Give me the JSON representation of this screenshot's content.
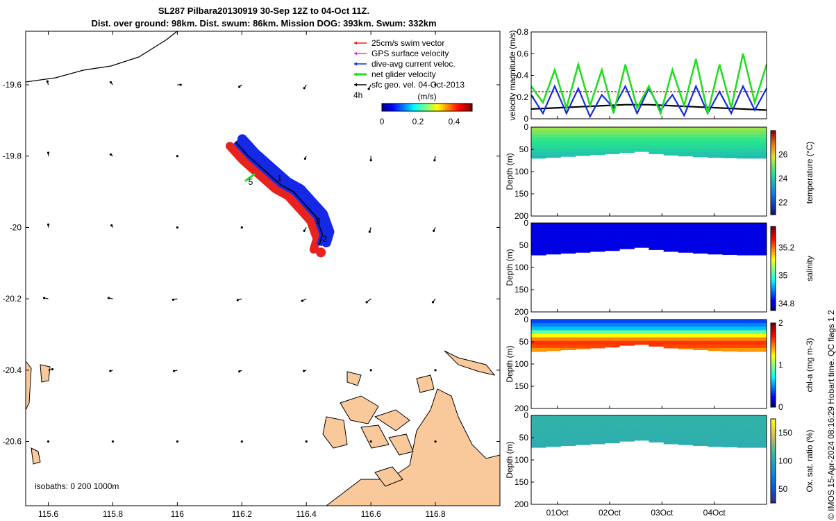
{
  "title_line1": "SL287 Pilbara20130919 30-Sep 12Z to 04-Oct 11Z.",
  "title_line2": "Dist. over ground: 98km. Dist. swum: 86km. Mission DOG: 393km. Swum: 332km",
  "credit": "© IMOS 15-Apr-2024 08:16:29 Hobart time. QC flags 1  2",
  "colors": {
    "land": "#f9c99b",
    "swim": "#e8231f",
    "gps": "#e030e0",
    "dive": "#1428e6",
    "net": "#22dd22",
    "sfc": "#000000"
  },
  "chart_data": [
    {
      "type": "scatter",
      "name": "map",
      "xlim": [
        115.53,
        117.0
      ],
      "ylim": [
        -20.78,
        -19.45
      ],
      "xticks": [
        115.6,
        115.8,
        116,
        116.2,
        116.4,
        116.6,
        116.8
      ],
      "xtick_labels": [
        "115.6",
        "115.8",
        "116",
        "116.2",
        "116.4",
        "116.6",
        "116.8"
      ],
      "yticks": [
        -19.6,
        -19.8,
        -20,
        -20.2,
        -20.4,
        -20.6
      ],
      "ytick_labels": [
        "-19.6",
        "-19.8",
        "-20",
        "-20.2",
        "-20.4",
        "-20.6"
      ],
      "legend": [
        {
          "label": "25cm/s swim vector",
          "color": "#e8231f"
        },
        {
          "label": "GPS surface velocity",
          "color": "#e030e0"
        },
        {
          "label": "dive-avg current veloc.",
          "color": "#1428e6"
        },
        {
          "label": "net glider velocity",
          "color": "#22dd22"
        },
        {
          "label": "sfc geo. vel. 04-Oct-2013",
          "color": "#000000"
        }
      ],
      "legend_placement": "top-right",
      "scale_label": "4h",
      "colorbar": {
        "label": "(m/s)",
        "range": [
          0,
          0.5
        ],
        "ticks": [
          0,
          0.2,
          0.4
        ],
        "tick_labels": [
          "0",
          "0.2",
          "0.4"
        ]
      },
      "isobaths_label": "isobaths: 0   200  1000m",
      "track_labels": [
        {
          "text": "1",
          "lon": 116.31,
          "lat": -19.87
        },
        {
          "text": "2",
          "lon": 116.45,
          "lat": -20.04
        },
        {
          "text": "3",
          "lon": 116.43,
          "lat": -19.99
        },
        {
          "text": "5",
          "lon": 116.22,
          "lat": -19.88
        }
      ],
      "track": [
        [
          116.18,
          -19.76
        ],
        [
          116.22,
          -19.8
        ],
        [
          116.27,
          -19.84
        ],
        [
          116.32,
          -19.88
        ],
        [
          116.36,
          -19.9
        ],
        [
          116.4,
          -19.94
        ],
        [
          116.43,
          -19.97
        ],
        [
          116.45,
          -20.02
        ],
        [
          116.44,
          -20.05
        ]
      ],
      "geo_vectors": {
        "lons": [
          115.6,
          115.8,
          116.0,
          116.2,
          116.4,
          116.6,
          116.8
        ],
        "lats": [
          -19.6,
          -19.8,
          -20.0,
          -20.2,
          -20.4,
          -20.6
        ],
        "u": [
          [
            -0.02,
            -0.05,
            0.08,
            -0.06,
            -0.05,
            -0.05,
            0
          ],
          [
            0,
            -0.05,
            0,
            0,
            -0.03,
            0,
            -0.02
          ],
          [
            0,
            -0.03,
            0,
            0,
            -0.05,
            -0.03,
            -0.04
          ],
          [
            -0.1,
            -0.1,
            -0.1,
            -0.1,
            -0.1,
            -0.1,
            -0.06
          ],
          [
            0.1,
            -0.06,
            -0.08,
            -0.06,
            -0.06,
            0,
            0
          ],
          [
            0,
            0,
            0,
            0,
            0,
            0,
            0
          ]
        ],
        "v": [
          [
            0.08,
            0.06,
            0,
            -0.05,
            -0.08,
            -0.1,
            0
          ],
          [
            0.08,
            0.04,
            0,
            0,
            -0.06,
            -0.1,
            -0.1
          ],
          [
            0.07,
            0.05,
            0,
            0,
            -0.08,
            -0.1,
            -0.08
          ],
          [
            0.02,
            0.02,
            -0.02,
            -0.03,
            -0.05,
            -0.08,
            -0.08
          ],
          [
            0.02,
            -0.02,
            -0.02,
            -0.03,
            -0.02,
            0,
            0
          ],
          [
            0,
            0,
            0,
            0,
            0,
            0,
            0
          ]
        ]
      }
    },
    {
      "type": "line",
      "name": "velocity",
      "ylabel": "velocity magnitude (m/s)",
      "ylim": [
        0,
        0.8
      ],
      "yticks": [
        0,
        0.2,
        0.4,
        0.6,
        0.8
      ],
      "ytick_labels": [
        "0",
        "0.2",
        "0.4",
        "0.6",
        "0.8"
      ],
      "xlim": [
        0.5,
        5.0
      ],
      "series": [
        {
          "color": "#e8231f",
          "values": [
            0.25,
            0.25,
            0.25,
            0.25,
            0.25,
            0.25,
            0.25,
            0.25,
            0.25,
            0.25,
            0.25
          ]
        },
        {
          "color": "#000000",
          "values": [
            0.09,
            0.1,
            0.11,
            0.12,
            0.13,
            0.13,
            0.12,
            0.11,
            0.1,
            0.09,
            0.08
          ]
        },
        {
          "color": "#1428e6",
          "values": [
            0.22,
            0.05,
            0.3,
            0.05,
            0.28,
            0.02,
            0.22,
            0.1,
            0.3,
            0.05,
            0.28,
            0.08,
            0.22,
            0.03,
            0.3,
            0.05,
            0.25,
            0.05,
            0.3,
            0.08,
            0.28
          ]
        },
        {
          "color": "#22dd22",
          "values": [
            0.3,
            0.15,
            0.45,
            0.1,
            0.5,
            0.12,
            0.45,
            0.05,
            0.5,
            0.1,
            0.3,
            0.05,
            0.45,
            0.12,
            0.55,
            0.05,
            0.5,
            0.1,
            0.6,
            0.15,
            0.5
          ]
        }
      ]
    },
    {
      "type": "heatmap",
      "name": "temperature",
      "ylabel": "Depth (m)",
      "cbar_label": "temperature (°C)",
      "ylim": [
        0,
        200
      ],
      "yticks": [
        0,
        50,
        100,
        150,
        200
      ],
      "ytick_labels": [
        "0",
        "50",
        "100",
        "150",
        "200"
      ],
      "cbar_range": [
        21,
        28
      ],
      "cbar_ticks": [
        22,
        24,
        26
      ],
      "cbar_tick_labels": [
        "22",
        "24",
        "26"
      ],
      "bottom_depth": [
        70,
        68,
        66,
        64,
        62,
        60,
        57,
        55,
        60,
        63,
        65,
        67,
        68,
        69,
        70,
        70
      ],
      "profile": [
        {
          "depth": 0,
          "value": 25.5
        },
        {
          "depth": 30,
          "value": 24.5
        },
        {
          "depth": 60,
          "value": 24.0
        },
        {
          "depth": 80,
          "value": 23.5
        }
      ]
    },
    {
      "type": "heatmap",
      "name": "salinity",
      "ylabel": "Depth (m)",
      "cbar_label": "salinity",
      "ylim": [
        0,
        200
      ],
      "yticks": [
        0,
        50,
        100,
        150,
        200
      ],
      "ytick_labels": [
        "0",
        "50",
        "100",
        "150",
        "200"
      ],
      "cbar_range": [
        34.75,
        35.35
      ],
      "cbar_ticks": [
        34.8,
        35,
        35.2
      ],
      "cbar_tick_labels": [
        "34.8",
        "35",
        "35.2"
      ],
      "bottom_depth": [
        72,
        70,
        68,
        66,
        64,
        62,
        58,
        55,
        60,
        64,
        66,
        68,
        70,
        71,
        72,
        72
      ],
      "profile": [
        {
          "depth": 0,
          "value": 34.8
        },
        {
          "depth": 80,
          "value": 34.8
        }
      ]
    },
    {
      "type": "heatmap",
      "name": "chl",
      "ylabel": "Depth (m)",
      "cbar_label": "chl-a (mg m-3)",
      "ylim": [
        0,
        200
      ],
      "yticks": [
        0,
        50,
        100,
        150,
        200
      ],
      "ytick_labels": [
        "0",
        "50",
        "100",
        "150",
        "200"
      ],
      "cbar_range": [
        0,
        2
      ],
      "cbar_ticks": [
        0,
        1,
        2
      ],
      "cbar_tick_labels": [
        "0",
        "1",
        "2"
      ],
      "bottom_depth": [
        72,
        70,
        68,
        66,
        64,
        62,
        58,
        56,
        60,
        64,
        66,
        68,
        70,
        71,
        72,
        72
      ],
      "profile": [
        {
          "depth": 0,
          "value": 0.3
        },
        {
          "depth": 20,
          "value": 0.6
        },
        {
          "depth": 40,
          "value": 1.4
        },
        {
          "depth": 55,
          "value": 1.7
        },
        {
          "depth": 75,
          "value": 1.3
        }
      ]
    },
    {
      "type": "heatmap",
      "name": "oxygen",
      "ylabel": "Depth (m)",
      "cbar_label": "Ox. sat. ratio (%)",
      "ylim": [
        0,
        200
      ],
      "yticks": [
        0,
        50,
        100,
        150,
        200
      ],
      "ytick_labels": [
        "0",
        "50",
        "100",
        "150",
        "200"
      ],
      "cbar_range": [
        25,
        175
      ],
      "cbar_ticks": [
        50,
        100,
        150
      ],
      "cbar_tick_labels": [
        "50",
        "100",
        "150"
      ],
      "bottom_depth": [
        72,
        70,
        68,
        66,
        64,
        62,
        58,
        56,
        60,
        64,
        66,
        68,
        70,
        71,
        72,
        72
      ],
      "profile": [
        {
          "depth": 0,
          "value": 110
        },
        {
          "depth": 50,
          "value": 108
        },
        {
          "depth": 80,
          "value": 105
        }
      ]
    }
  ],
  "time_axis": {
    "ticks": [
      1,
      2,
      3,
      4
    ],
    "tick_labels": [
      "01Oct",
      "02Oct",
      "03Oct",
      "04Oct"
    ]
  }
}
